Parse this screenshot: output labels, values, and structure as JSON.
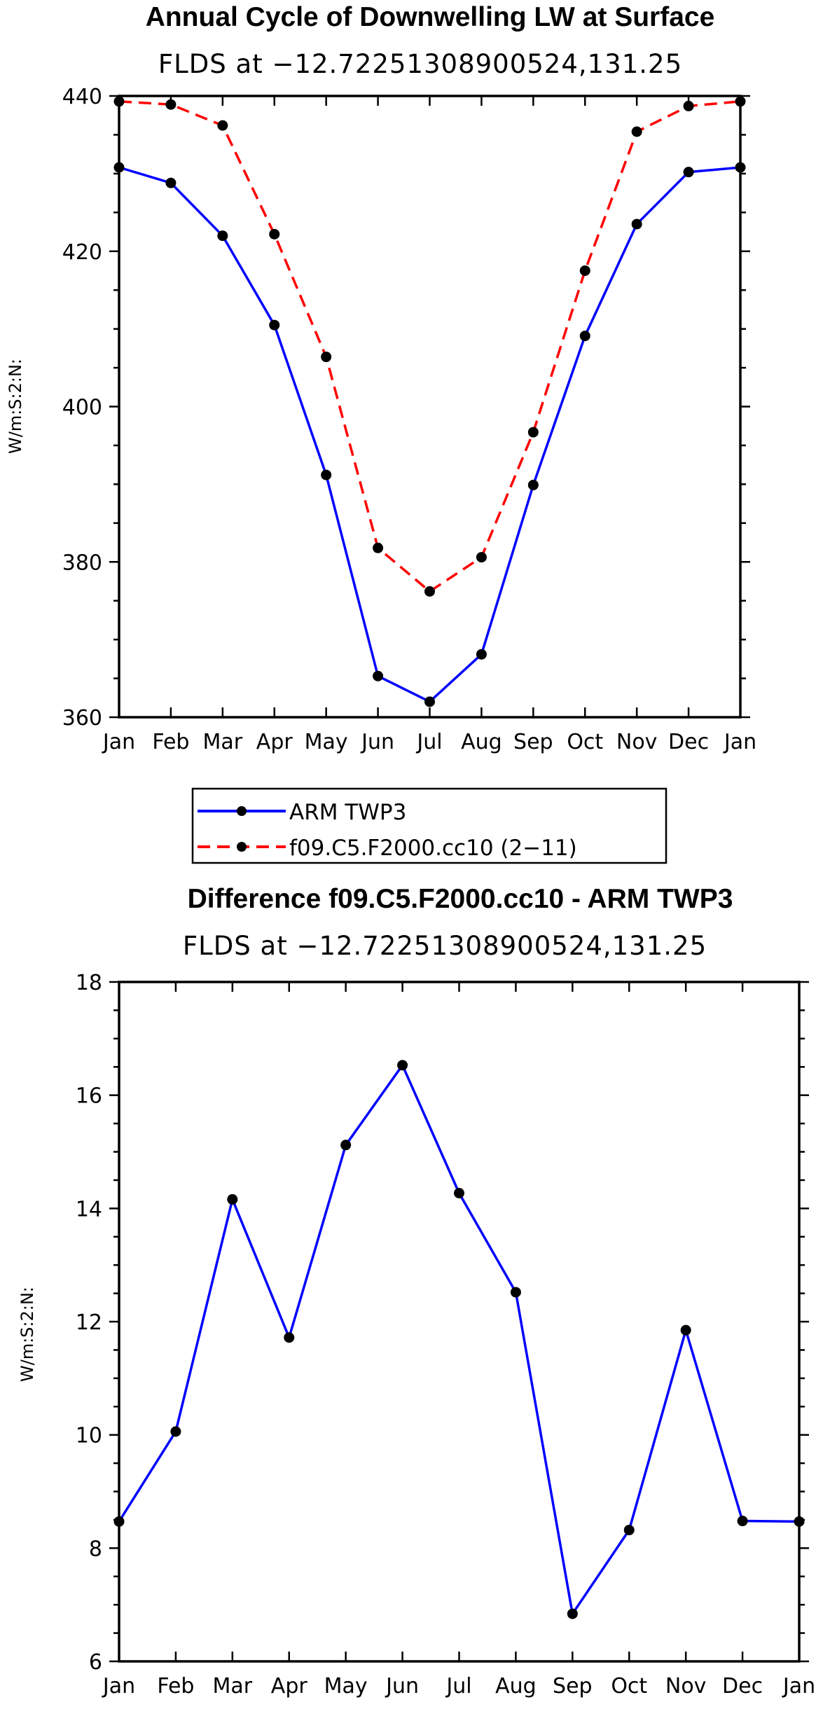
{
  "chart_data": [
    {
      "type": "line",
      "title": "Annual Cycle of Downwelling LW at Surface",
      "subtitle": "FLDS at −12.72251308900524,131.25",
      "xlabel": "",
      "ylabel": "W/m:S:2:N:",
      "categories": [
        "Jan",
        "Feb",
        "Mar",
        "Apr",
        "May",
        "Jun",
        "Jul",
        "Aug",
        "Sep",
        "Oct",
        "Nov",
        "Dec",
        "Jan"
      ],
      "ylim": [
        360,
        440
      ],
      "yticks": [
        360,
        380,
        400,
        420,
        440
      ],
      "series": [
        {
          "name": "ARM TWP3",
          "color": "#0000ff",
          "dash": "solid",
          "values": [
            430.8,
            428.8,
            422.0,
            410.5,
            391.2,
            365.3,
            362.0,
            368.1,
            389.9,
            409.1,
            423.5,
            430.2,
            430.8
          ]
        },
        {
          "name": "f09.C5.F2000.cc10 (2−11)",
          "color": "#ff0000",
          "dash": "dashed",
          "values": [
            439.3,
            438.9,
            436.2,
            422.2,
            406.4,
            381.8,
            376.2,
            380.6,
            396.7,
            417.5,
            435.4,
            438.7,
            439.3
          ]
        }
      ]
    },
    {
      "type": "line",
      "title": "Difference f09.C5.F2000.cc10 - ARM TWP3",
      "subtitle": "FLDS at −12.72251308900524,131.25",
      "xlabel": "",
      "ylabel": "W/m:S:2:N:",
      "categories": [
        "Jan",
        "Feb",
        "Mar",
        "Apr",
        "May",
        "Jun",
        "Jul",
        "Aug",
        "Sep",
        "Oct",
        "Nov",
        "Dec",
        "Jan"
      ],
      "ylim": [
        6,
        18
      ],
      "yticks": [
        6,
        8,
        10,
        12,
        14,
        16,
        18
      ],
      "series": [
        {
          "name": "Difference",
          "color": "#0000ff",
          "dash": "solid",
          "values": [
            8.47,
            10.06,
            14.16,
            11.72,
            15.12,
            16.53,
            14.27,
            12.52,
            6.84,
            8.32,
            11.85,
            8.48,
            8.47
          ]
        }
      ]
    }
  ]
}
